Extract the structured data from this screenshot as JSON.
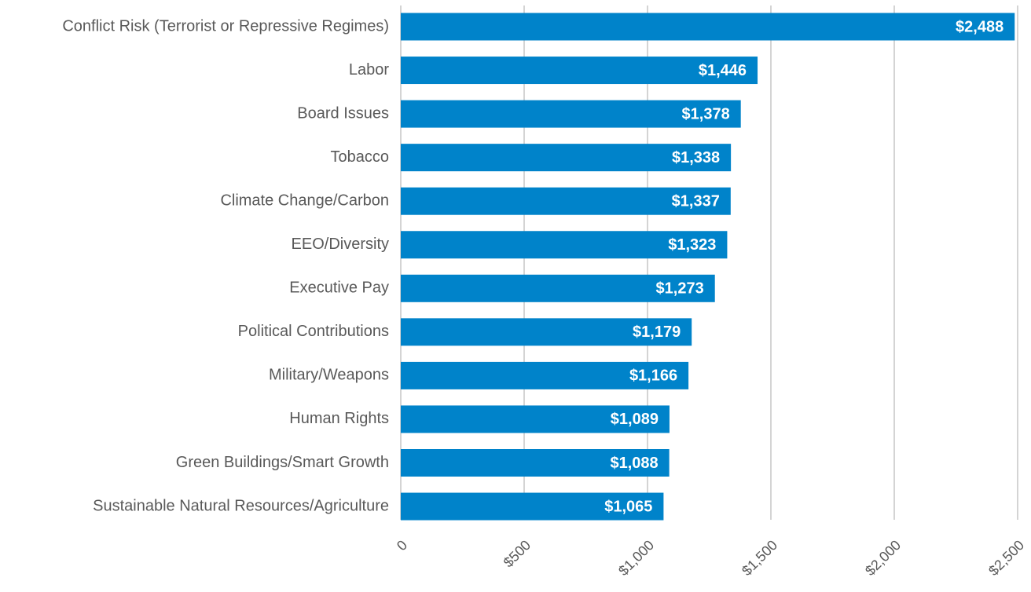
{
  "chart_data": {
    "type": "bar",
    "orientation": "horizontal",
    "categories": [
      "Conflict Risk (Terrorist or Repressive Regimes)",
      "Labor",
      "Board Issues",
      "Tobacco",
      "Climate Change/Carbon",
      "EEO/Diversity",
      "Executive Pay",
      "Political Contributions",
      "Military/Weapons",
      "Human Rights",
      "Green Buildings/Smart Growth",
      "Sustainable Natural Resources/Agriculture"
    ],
    "values": [
      2488,
      1446,
      1378,
      1338,
      1337,
      1323,
      1273,
      1179,
      1166,
      1089,
      1088,
      1065
    ],
    "value_labels": [
      "$2,488",
      "$1,446",
      "$1,378",
      "$1,338",
      "$1,337",
      "$1,323",
      "$1,273",
      "$1,179",
      "$1,166",
      "$1,089",
      "$1,088",
      "$1,065"
    ],
    "color": "#0083ca",
    "xlim": [
      0,
      2500
    ],
    "xticks": [
      0,
      {
        "value": 500,
        "label": "$500"
      },
      {
        "value": 1000,
        "label": "$1,000"
      },
      {
        "value": 1500,
        "label": "$1,500"
      },
      {
        "value": 2000,
        "label": "$2,000"
      },
      {
        "value": 2500,
        "label": "$2,500"
      }
    ],
    "grid": true
  }
}
